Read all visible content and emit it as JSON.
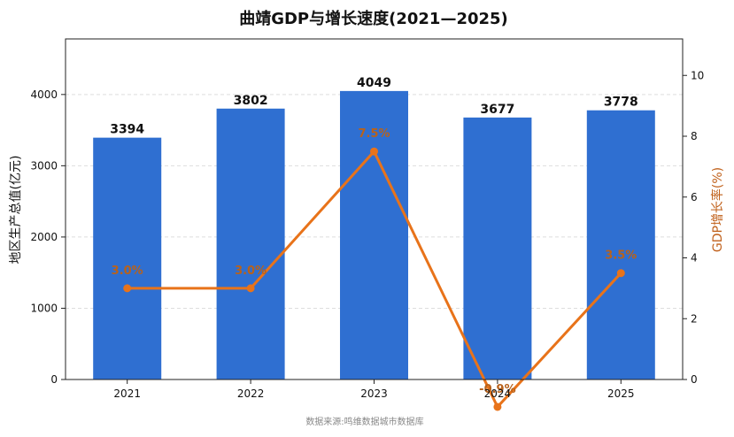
{
  "chart_data": {
    "type": "bar+line",
    "title": "曲靖GDP与增长速度(2021—2025)",
    "categories": [
      "2021",
      "2022",
      "2023",
      "2024",
      "2025"
    ],
    "series": [
      {
        "name": "地区生产总值(亿元)",
        "type": "bar",
        "axis": "left",
        "values": [
          3394,
          3802,
          4049,
          3677,
          3778
        ],
        "labels": [
          "3394",
          "3802",
          "4049",
          "3677",
          "3778"
        ]
      },
      {
        "name": "GDP增长率(%)",
        "type": "line",
        "axis": "right",
        "values": [
          3.0,
          3.0,
          7.5,
          -0.9,
          3.5
        ],
        "labels": [
          "3.0%",
          "3.0%",
          "7.5%",
          "-0.9%",
          "3.5%"
        ]
      }
    ],
    "ylabel_left": "地区生产总值(亿元)",
    "ylabel_right": "GDP增长率(%)",
    "ylim_left": [
      0,
      4780
    ],
    "yticks_left": [
      0,
      1000,
      2000,
      3000,
      4000
    ],
    "ylim_right": [
      0,
      11.2
    ],
    "yticks_right": [
      0,
      2,
      4,
      6,
      8,
      10
    ],
    "grid": "horizontal dashed",
    "colors": {
      "bar": "#2f6fd1",
      "line": "#e8731a",
      "rate_text": "#b8621b",
      "right_axis_label": "#c0601a"
    },
    "source": "数据来源:鸣维数据城市数据库"
  }
}
